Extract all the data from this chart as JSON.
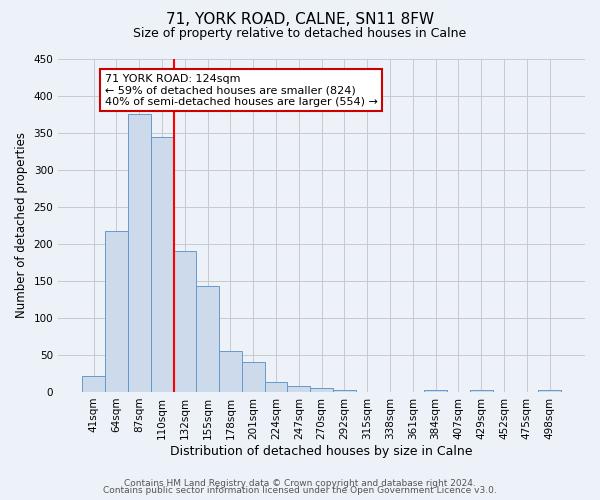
{
  "title": "71, YORK ROAD, CALNE, SN11 8FW",
  "subtitle": "Size of property relative to detached houses in Calne",
  "xlabel": "Distribution of detached houses by size in Calne",
  "ylabel": "Number of detached properties",
  "bar_labels": [
    "41sqm",
    "64sqm",
    "87sqm",
    "110sqm",
    "132sqm",
    "155sqm",
    "178sqm",
    "201sqm",
    "224sqm",
    "247sqm",
    "270sqm",
    "292sqm",
    "315sqm",
    "338sqm",
    "361sqm",
    "384sqm",
    "407sqm",
    "429sqm",
    "452sqm",
    "475sqm",
    "498sqm"
  ],
  "bar_values": [
    22,
    217,
    375,
    345,
    190,
    143,
    55,
    40,
    13,
    8,
    5,
    2,
    0,
    0,
    0,
    2,
    0,
    2,
    0,
    0,
    2
  ],
  "bar_color": "#ccdaeb",
  "bar_edge_color": "#6699cc",
  "bar_width": 1.0,
  "red_line_x": 3.55,
  "annotation_title": "71 YORK ROAD: 124sqm",
  "annotation_line2": "← 59% of detached houses are smaller (824)",
  "annotation_line3": "40% of semi-detached houses are larger (554) →",
  "annotation_box_color": "#ffffff",
  "annotation_box_edge_color": "#cc0000",
  "ylim": [
    0,
    450
  ],
  "yticks": [
    0,
    50,
    100,
    150,
    200,
    250,
    300,
    350,
    400,
    450
  ],
  "grid_color": "#c8c8d0",
  "background_color": "#edf2f9",
  "footer_line1": "Contains HM Land Registry data © Crown copyright and database right 2024.",
  "footer_line2": "Contains public sector information licensed under the Open Government Licence v3.0.",
  "title_fontsize": 11,
  "subtitle_fontsize": 9,
  "xlabel_fontsize": 9,
  "ylabel_fontsize": 8.5,
  "tick_fontsize": 7.5,
  "footer_fontsize": 6.5,
  "ann_fontsize": 8
}
